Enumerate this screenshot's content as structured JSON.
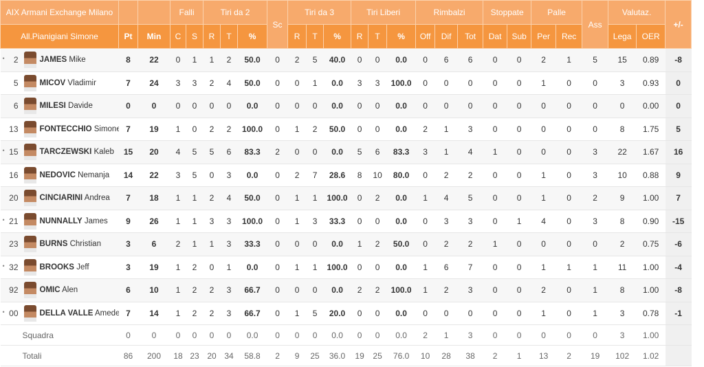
{
  "header": {
    "team": "AIX Armani Exchange Milano",
    "coach": "All.Pianigiani Simone",
    "groups": [
      "Falli",
      "Tiri da 2",
      "Sc",
      "Tiri da 3",
      "Tiri Liberi",
      "Rimbalzi",
      "Stoppate",
      "Palle",
      "Ass",
      "Valutaz.",
      "+/-"
    ],
    "columns": [
      "Pt",
      "Min",
      "C",
      "S",
      "R",
      "T",
      "%",
      "R",
      "T",
      "%",
      "R",
      "T",
      "%",
      "Off",
      "Dif",
      "Tot",
      "Dat",
      "Sub",
      "Per",
      "Rec",
      "Lega",
      "OER"
    ]
  },
  "players": [
    {
      "bullet": "•",
      "number": "2",
      "surname": "JAMES",
      "first": "Mike",
      "stats": [
        "8",
        "22",
        "0",
        "1",
        "1",
        "2",
        "50.0",
        "0",
        "2",
        "5",
        "40.0",
        "0",
        "0",
        "0.0",
        "0",
        "6",
        "6",
        "0",
        "0",
        "2",
        "1",
        "5",
        "15",
        "0.89",
        "-8"
      ]
    },
    {
      "number": "5",
      "surname": "MICOV",
      "first": "Vladimir",
      "stats": [
        "7",
        "24",
        "3",
        "3",
        "2",
        "4",
        "50.0",
        "0",
        "0",
        "1",
        "0.0",
        "3",
        "3",
        "100.0",
        "0",
        "0",
        "0",
        "0",
        "0",
        "1",
        "0",
        "0",
        "3",
        "0.93",
        "0"
      ]
    },
    {
      "number": "6",
      "surname": "MILESI",
      "first": "Davide",
      "stats": [
        "0",
        "0",
        "0",
        "0",
        "0",
        "0",
        "0.0",
        "0",
        "0",
        "0",
        "0.0",
        "0",
        "0",
        "0.0",
        "0",
        "0",
        "0",
        "0",
        "0",
        "0",
        "0",
        "0",
        "0",
        "0.00",
        "0"
      ]
    },
    {
      "number": "13",
      "surname": "FONTECCHIO",
      "first": "Simone",
      "stats": [
        "7",
        "19",
        "1",
        "0",
        "2",
        "2",
        "100.0",
        "0",
        "1",
        "2",
        "50.0",
        "0",
        "0",
        "0.0",
        "2",
        "1",
        "3",
        "0",
        "0",
        "0",
        "0",
        "0",
        "8",
        "1.75",
        "5"
      ]
    },
    {
      "bullet": "•",
      "number": "15",
      "surname": "TARCZEWSKI",
      "first": "Kaleb",
      "stats": [
        "15",
        "20",
        "4",
        "5",
        "5",
        "6",
        "83.3",
        "2",
        "0",
        "0",
        "0.0",
        "5",
        "6",
        "83.3",
        "3",
        "1",
        "4",
        "1",
        "0",
        "0",
        "0",
        "3",
        "22",
        "1.67",
        "16"
      ]
    },
    {
      "number": "16",
      "surname": "NEDOVIC",
      "first": "Nemanja",
      "stats": [
        "14",
        "22",
        "3",
        "5",
        "0",
        "3",
        "0.0",
        "0",
        "2",
        "7",
        "28.6",
        "8",
        "10",
        "80.0",
        "0",
        "2",
        "2",
        "0",
        "0",
        "1",
        "0",
        "3",
        "10",
        "0.88",
        "9"
      ]
    },
    {
      "number": "20",
      "surname": "CINCIARINI",
      "first": "Andrea",
      "stats": [
        "7",
        "18",
        "1",
        "1",
        "2",
        "4",
        "50.0",
        "0",
        "1",
        "1",
        "100.0",
        "0",
        "2",
        "0.0",
        "1",
        "4",
        "5",
        "0",
        "0",
        "1",
        "0",
        "2",
        "9",
        "1.00",
        "7"
      ]
    },
    {
      "bullet": "•",
      "number": "21",
      "surname": "NUNNALLY",
      "first": "James",
      "stats": [
        "9",
        "26",
        "1",
        "1",
        "3",
        "3",
        "100.0",
        "0",
        "1",
        "3",
        "33.3",
        "0",
        "0",
        "0.0",
        "0",
        "3",
        "3",
        "0",
        "1",
        "4",
        "0",
        "3",
        "8",
        "0.90",
        "-15"
      ]
    },
    {
      "number": "23",
      "surname": "BURNS",
      "first": "Christian",
      "stats": [
        "3",
        "6",
        "2",
        "1",
        "1",
        "3",
        "33.3",
        "0",
        "0",
        "0",
        "0.0",
        "1",
        "2",
        "50.0",
        "0",
        "2",
        "2",
        "1",
        "0",
        "0",
        "0",
        "0",
        "2",
        "0.75",
        "-6"
      ]
    },
    {
      "bullet": "•",
      "number": "32",
      "surname": "BROOKS",
      "first": "Jeff",
      "stats": [
        "3",
        "19",
        "1",
        "2",
        "0",
        "1",
        "0.0",
        "0",
        "1",
        "1",
        "100.0",
        "0",
        "0",
        "0.0",
        "1",
        "6",
        "7",
        "0",
        "0",
        "1",
        "1",
        "1",
        "11",
        "1.00",
        "-4"
      ]
    },
    {
      "number": "92",
      "surname": "OMIC",
      "first": "Alen",
      "stats": [
        "6",
        "10",
        "1",
        "2",
        "2",
        "3",
        "66.7",
        "0",
        "0",
        "0",
        "0.0",
        "2",
        "2",
        "100.0",
        "1",
        "2",
        "3",
        "0",
        "0",
        "2",
        "0",
        "1",
        "8",
        "1.00",
        "-8"
      ]
    },
    {
      "bullet": "•",
      "number": "00",
      "surname": "DELLA VALLE",
      "first": "Amedeo",
      "stats": [
        "7",
        "14",
        "1",
        "2",
        "2",
        "3",
        "66.7",
        "0",
        "1",
        "5",
        "20.0",
        "0",
        "0",
        "0.0",
        "0",
        "0",
        "0",
        "0",
        "0",
        "1",
        "0",
        "1",
        "3",
        "0.78",
        "-1"
      ]
    }
  ],
  "team_row": {
    "label": "Squadra",
    "stats": [
      "0",
      "0",
      "0",
      "0",
      "0",
      "0",
      "0.0",
      "0",
      "0",
      "0",
      "0.0",
      "0",
      "0",
      "0.0",
      "2",
      "1",
      "3",
      "0",
      "0",
      "0",
      "0",
      "0",
      "3",
      "1.00"
    ]
  },
  "totals": {
    "label": "Totali",
    "stats": [
      "86",
      "200",
      "18",
      "23",
      "20",
      "34",
      "58.8",
      "2",
      "9",
      "25",
      "36.0",
      "19",
      "25",
      "76.0",
      "10",
      "28",
      "38",
      "2",
      "1",
      "13",
      "2",
      "19",
      "102",
      "1.02"
    ]
  }
}
